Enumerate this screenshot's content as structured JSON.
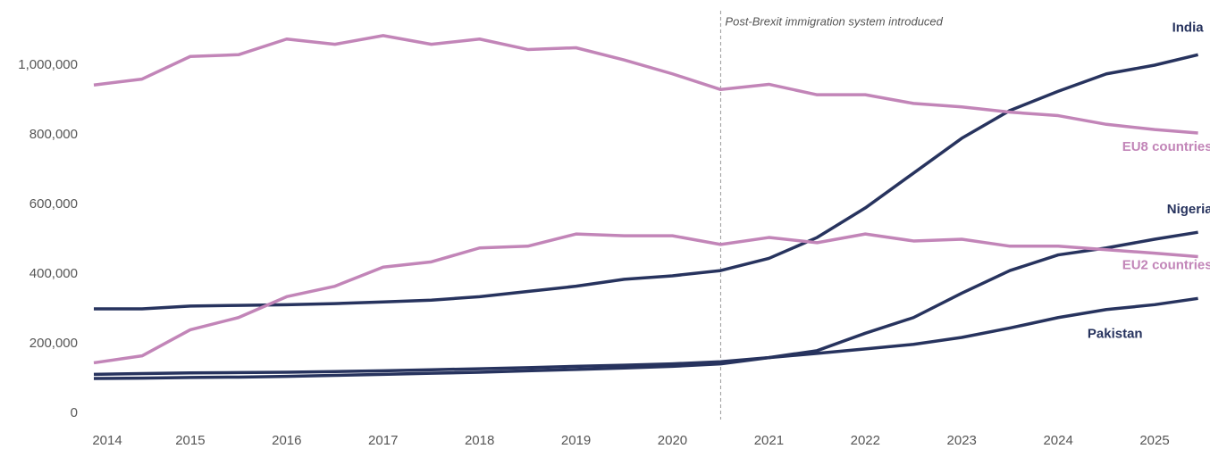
{
  "chart_data": {
    "type": "line",
    "x": [
      2014,
      2014.5,
      2015,
      2015.5,
      2016,
      2016.5,
      2017,
      2017.5,
      2018,
      2018.5,
      2019,
      2019.5,
      2020,
      2020.5,
      2021,
      2021.5,
      2022,
      2022.5,
      2023,
      2023.5,
      2024,
      2024.5,
      2025,
      2025.45
    ],
    "series": [
      {
        "name": "India",
        "color": "#27335e",
        "values": [
          300000,
          300000,
          308000,
          310000,
          312000,
          315000,
          320000,
          325000,
          335000,
          350000,
          365000,
          385000,
          395000,
          410000,
          445000,
          505000,
          590000,
          690000,
          790000,
          870000,
          925000,
          975000,
          1000000,
          1030000
        ]
      },
      {
        "name": "EU8 countries",
        "color": "#c285b8",
        "values": [
          943000,
          960000,
          1025000,
          1030000,
          1075000,
          1060000,
          1085000,
          1060000,
          1075000,
          1045000,
          1050000,
          1015000,
          975000,
          930000,
          945000,
          915000,
          915000,
          890000,
          880000,
          865000,
          855000,
          830000,
          815000,
          805000
        ]
      },
      {
        "name": "Nigeria",
        "color": "#27335e",
        "values": [
          112000,
          114000,
          116000,
          117000,
          118000,
          120000,
          122000,
          125000,
          128000,
          131000,
          135000,
          138000,
          142000,
          148000,
          160000,
          180000,
          230000,
          275000,
          345000,
          410000,
          455000,
          475000,
          500000,
          520000
        ]
      },
      {
        "name": "EU2 countries",
        "color": "#c285b8",
        "values": [
          145000,
          165000,
          240000,
          275000,
          335000,
          365000,
          420000,
          435000,
          475000,
          480000,
          515000,
          510000,
          510000,
          485000,
          505000,
          490000,
          515000,
          495000,
          500000,
          480000,
          480000,
          470000,
          460000,
          450000
        ]
      },
      {
        "name": "Pakistan",
        "color": "#27335e",
        "values": [
          100000,
          101000,
          103000,
          104000,
          106000,
          109000,
          112000,
          115000,
          118000,
          122000,
          126000,
          130000,
          135000,
          142000,
          160000,
          172000,
          185000,
          198000,
          218000,
          245000,
          275000,
          298000,
          312000,
          330000
        ]
      }
    ],
    "xlim": [
      2014,
      2025.5
    ],
    "xticks": [
      2014,
      2015,
      2016,
      2017,
      2018,
      2019,
      2020,
      2021,
      2022,
      2023,
      2024,
      2025
    ],
    "ylim": [
      0,
      1100000
    ],
    "yticks": [
      0,
      {
        "value": 200000,
        "label": "200,000"
      },
      {
        "value": 400000,
        "label": "400,000"
      },
      {
        "value": 600000,
        "label": "600,000"
      },
      {
        "value": 800000,
        "label": "800,000"
      },
      {
        "value": 1000000,
        "label": "1,000,000"
      }
    ],
    "annotations": [
      {
        "x": 2020.5,
        "text": "Post-Brexit immigration system introduced"
      }
    ]
  }
}
